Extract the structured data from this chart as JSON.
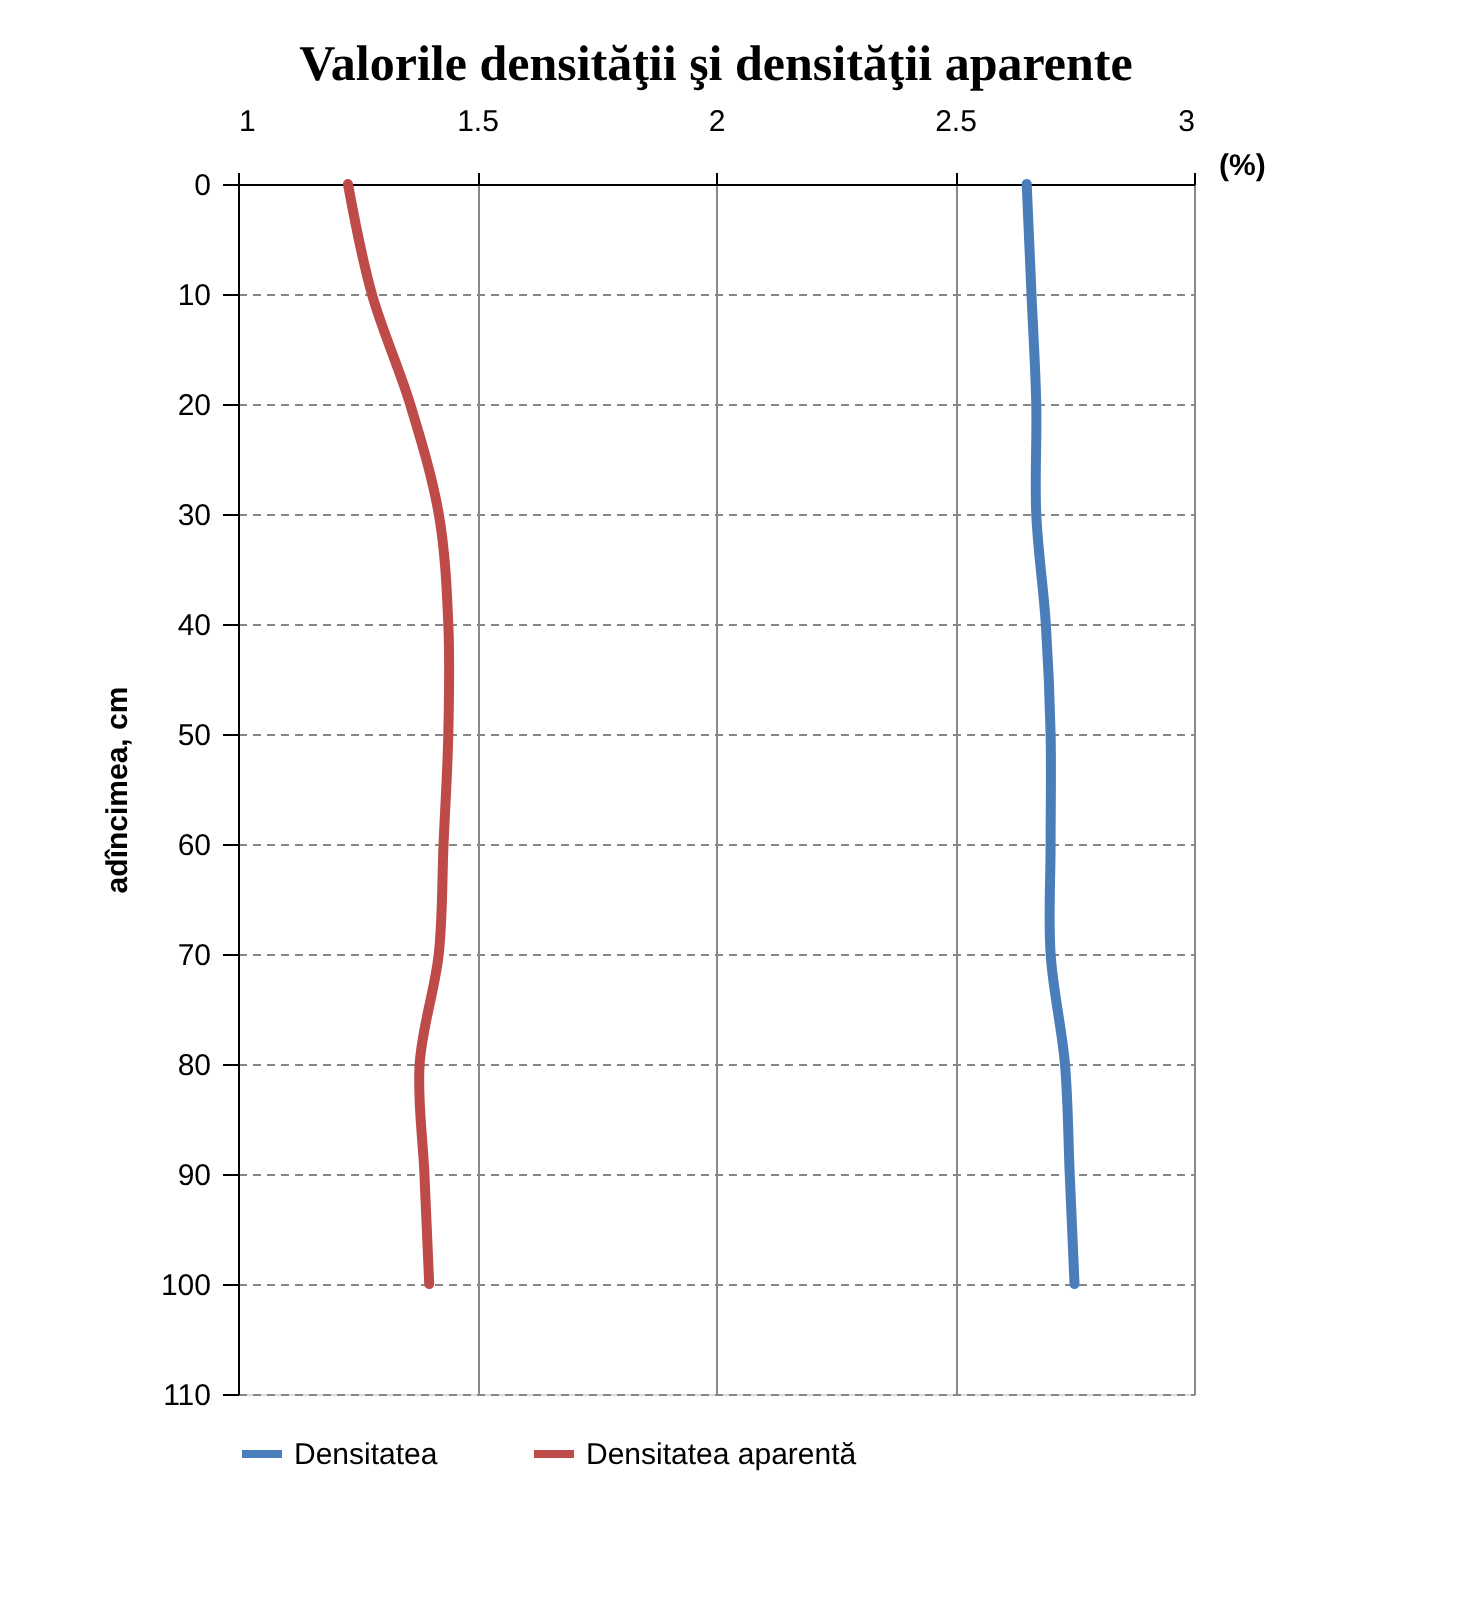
{
  "chart_data": {
    "type": "line",
    "title": "Valorile  densităţii şi densităţii aparente",
    "xlabel": "(%)",
    "ylabel": "adîncimea, cm",
    "xlim": [
      1,
      3
    ],
    "xticks": [
      1,
      1.5,
      2,
      2.5,
      3
    ],
    "ylim": [
      110,
      0
    ],
    "yticks": [
      0,
      10,
      20,
      30,
      40,
      50,
      60,
      70,
      80,
      90,
      100,
      110
    ],
    "grid": true,
    "legend": "bottom",
    "line_style": "solid",
    "marker": "none",
    "series": [
      {
        "name": "Densitatea",
        "color": "#4a7ebb",
        "x": [
          2.65,
          2.66,
          2.67,
          2.67,
          2.69,
          2.7,
          2.7,
          2.7,
          2.73,
          2.74,
          2.75
        ],
        "values": [
          0,
          10,
          20,
          30,
          40,
          50,
          60,
          70,
          80,
          90,
          100
        ]
      },
      {
        "name": "Densitatea aparentă",
        "color": "#be4b48",
        "x": [
          1.23,
          1.28,
          1.36,
          1.42,
          1.44,
          1.44,
          1.43,
          1.42,
          1.38,
          1.39,
          1.4
        ],
        "values": [
          0,
          10,
          20,
          30,
          40,
          50,
          60,
          70,
          80,
          90,
          100
        ]
      }
    ]
  }
}
